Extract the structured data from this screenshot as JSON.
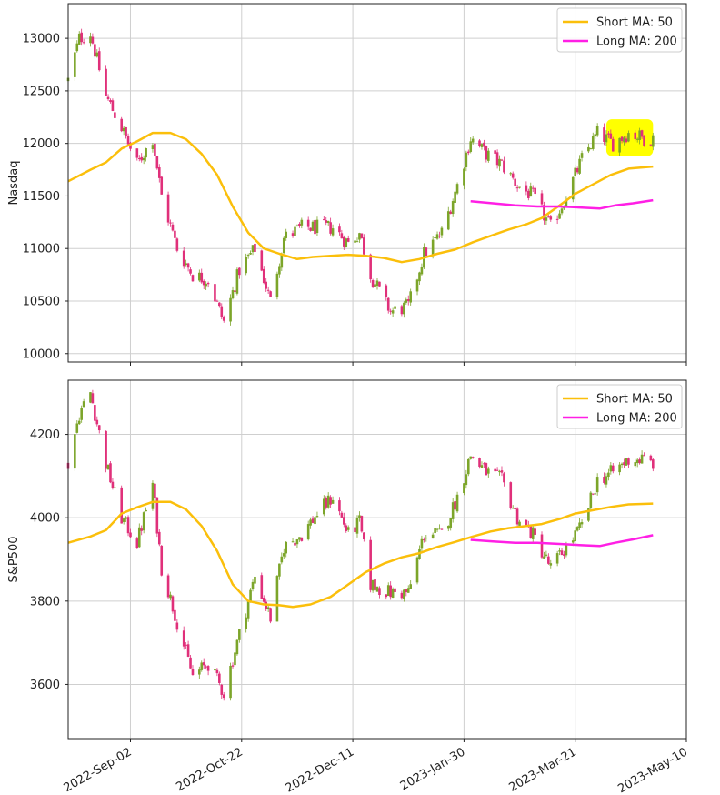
{
  "chart_data": {
    "type": "candlestick",
    "x_ticks": [
      "2022-Sep-02",
      "2022-Oct-22",
      "2022-Dec-11",
      "2023-Jan-30",
      "2023-Mar-21",
      "2023-May-10"
    ],
    "x_range": [
      "2022-Aug-05",
      "2023-May-10"
    ],
    "grid": true,
    "colors": {
      "up": "#7ca52a",
      "down": "#e0307a",
      "short_ma": "#fbbf0b",
      "long_ma": "#ff1fe5",
      "highlight": "#ffff00",
      "grid": "#cfcfcf"
    },
    "panels": [
      {
        "ylabel": "Nasdaq",
        "ylim": [
          9920,
          13330
        ],
        "yticks": [
          "10000",
          "10500",
          "11000",
          "11500",
          "12000",
          "12500",
          "13000"
        ],
        "legend": {
          "placement": "top-right",
          "entries": [
            "Short MA: 50",
            "Long MA: 200"
          ]
        },
        "highlight": {
          "x": [
            "2023-Apr-04",
            "2023-Apr-25"
          ],
          "y": [
            11880,
            12230
          ]
        },
        "series": [
          {
            "name": "Short MA: 50",
            "style": "line",
            "points": [
              [
                "2022-Aug-05",
                11640
              ],
              [
                "2022-Aug-15",
                11750
              ],
              [
                "2022-Aug-22",
                11820
              ],
              [
                "2022-Aug-29",
                11950
              ],
              [
                "2022-Sep-05",
                12020
              ],
              [
                "2022-Sep-12",
                12100
              ],
              [
                "2022-Sep-20",
                12100
              ],
              [
                "2022-Sep-27",
                12040
              ],
              [
                "2022-Oct-04",
                11900
              ],
              [
                "2022-Oct-11",
                11700
              ],
              [
                "2022-Oct-18",
                11400
              ],
              [
                "2022-Oct-25",
                11150
              ],
              [
                "2022-Nov-01",
                11000
              ],
              [
                "2022-Nov-08",
                10950
              ],
              [
                "2022-Nov-16",
                10900
              ],
              [
                "2022-Nov-23",
                10920
              ],
              [
                "2022-Dec-01",
                10930
              ],
              [
                "2022-Dec-09",
                10940
              ],
              [
                "2022-Dec-17",
                10930
              ],
              [
                "2022-Dec-25",
                10910
              ],
              [
                "2023-Jan-02",
                10870
              ],
              [
                "2023-Jan-10",
                10900
              ],
              [
                "2023-Jan-18",
                10950
              ],
              [
                "2023-Jan-26",
                10990
              ],
              [
                "2023-Feb-03",
                11060
              ],
              [
                "2023-Feb-11",
                11120
              ],
              [
                "2023-Feb-19",
                11180
              ],
              [
                "2023-Feb-27",
                11230
              ],
              [
                "2023-Mar-06",
                11290
              ],
              [
                "2023-Mar-14",
                11410
              ],
              [
                "2023-Mar-21",
                11520
              ],
              [
                "2023-Mar-29",
                11610
              ],
              [
                "2023-Apr-06",
                11700
              ],
              [
                "2023-Apr-14",
                11760
              ],
              [
                "2023-Apr-25",
                11780
              ]
            ]
          },
          {
            "name": "Long MA: 200",
            "style": "line",
            "points": [
              [
                "2023-Feb-02",
                11450
              ],
              [
                "2023-Feb-12",
                11430
              ],
              [
                "2023-Feb-22",
                11410
              ],
              [
                "2023-Mar-04",
                11400
              ],
              [
                "2023-Mar-14",
                11400
              ],
              [
                "2023-Mar-24",
                11390
              ],
              [
                "2023-Apr-01",
                11380
              ],
              [
                "2023-Apr-08",
                11410
              ],
              [
                "2023-Apr-16",
                11430
              ],
              [
                "2023-Apr-25",
                11460
              ]
            ]
          },
          {
            "name": "",
            "style": "candles",
            "anchors": [
              [
                "2022-Aug-05",
                12600
              ],
              [
                "2022-Aug-10",
                13000
              ],
              [
                "2022-Aug-15",
                13050
              ],
              [
                "2022-Aug-22",
                12450
              ],
              [
                "2022-Aug-29",
                12150
              ],
              [
                "2022-Sep-05",
                11800
              ],
              [
                "2022-Sep-12",
                12050
              ],
              [
                "2022-Sep-16",
                11500
              ],
              [
                "2022-Sep-23",
                11000
              ],
              [
                "2022-Sep-30",
                10750
              ],
              [
                "2022-Oct-07",
                10700
              ],
              [
                "2022-Oct-14",
                10300
              ],
              [
                "2022-Oct-21",
                10800
              ],
              [
                "2022-Oct-28",
                11000
              ],
              [
                "2022-Nov-04",
                10500
              ],
              [
                "2022-Nov-10",
                11100
              ],
              [
                "2022-Nov-18",
                11200
              ],
              [
                "2022-Nov-25",
                11200
              ],
              [
                "2022-Dec-02",
                11200
              ],
              [
                "2022-Dec-09",
                11050
              ],
              [
                "2022-Dec-14",
                11150
              ],
              [
                "2022-Dec-19",
                10750
              ],
              [
                "2022-Dec-28",
                10400
              ],
              [
                "2023-Jan-05",
                10450
              ],
              [
                "2023-Jan-12",
                10950
              ],
              [
                "2023-Jan-20",
                11150
              ],
              [
                "2023-Jan-27",
                11600
              ],
              [
                "2023-Feb-02",
                12050
              ],
              [
                "2023-Feb-09",
                11900
              ],
              [
                "2023-Feb-16",
                11800
              ],
              [
                "2023-Feb-23",
                11600
              ],
              [
                "2023-Mar-02",
                11500
              ],
              [
                "2023-Mar-10",
                11200
              ],
              [
                "2023-Mar-17",
                11500
              ],
              [
                "2023-Mar-24",
                11850
              ],
              [
                "2023-Mar-31",
                12100
              ],
              [
                "2023-Apr-07",
                12000
              ],
              [
                "2023-Apr-14",
                12100
              ],
              [
                "2023-Apr-21",
                12050
              ],
              [
                "2023-Apr-25",
                12050
              ]
            ]
          }
        ]
      },
      {
        "ylabel": "S&P500",
        "ylim": [
          3470,
          4330
        ],
        "yticks": [
          "3600",
          "3800",
          "4000",
          "4200"
        ],
        "legend": {
          "placement": "top-right",
          "entries": [
            "Short MA: 50",
            "Long MA: 200"
          ]
        },
        "series": [
          {
            "name": "Short MA: 50",
            "style": "line",
            "points": [
              [
                "2022-Aug-05",
                3940
              ],
              [
                "2022-Aug-15",
                3955
              ],
              [
                "2022-Aug-22",
                3970
              ],
              [
                "2022-Aug-29",
                4010
              ],
              [
                "2022-Sep-05",
                4025
              ],
              [
                "2022-Sep-12",
                4038
              ],
              [
                "2022-Sep-20",
                4038
              ],
              [
                "2022-Sep-27",
                4020
              ],
              [
                "2022-Oct-04",
                3980
              ],
              [
                "2022-Oct-11",
                3920
              ],
              [
                "2022-Oct-18",
                3840
              ],
              [
                "2022-Oct-25",
                3800
              ],
              [
                "2022-Nov-01",
                3792
              ],
              [
                "2022-Nov-08",
                3790
              ],
              [
                "2022-Nov-14",
                3786
              ],
              [
                "2022-Nov-22",
                3792
              ],
              [
                "2022-Dec-01",
                3810
              ],
              [
                "2022-Dec-09",
                3840
              ],
              [
                "2022-Dec-17",
                3870
              ],
              [
                "2022-Dec-25",
                3890
              ],
              [
                "2023-Jan-02",
                3905
              ],
              [
                "2023-Jan-10",
                3915
              ],
              [
                "2023-Jan-18",
                3930
              ],
              [
                "2023-Jan-26",
                3942
              ],
              [
                "2023-Feb-03",
                3955
              ],
              [
                "2023-Feb-11",
                3967
              ],
              [
                "2023-Feb-19",
                3975
              ],
              [
                "2023-Feb-27",
                3980
              ],
              [
                "2023-Mar-06",
                3985
              ],
              [
                "2023-Mar-14",
                3997
              ],
              [
                "2023-Mar-21",
                4010
              ],
              [
                "2023-Mar-29",
                4018
              ],
              [
                "2023-Apr-06",
                4026
              ],
              [
                "2023-Apr-14",
                4032
              ],
              [
                "2023-Apr-25",
                4034
              ]
            ]
          },
          {
            "name": "Long MA: 200",
            "style": "line",
            "points": [
              [
                "2023-Feb-02",
                3947
              ],
              [
                "2023-Feb-12",
                3943
              ],
              [
                "2023-Feb-22",
                3940
              ],
              [
                "2023-Mar-04",
                3940
              ],
              [
                "2023-Mar-14",
                3937
              ],
              [
                "2023-Mar-24",
                3934
              ],
              [
                "2023-Apr-01",
                3932
              ],
              [
                "2023-Apr-08",
                3940
              ],
              [
                "2023-Apr-16",
                3948
              ],
              [
                "2023-Apr-25",
                3958
              ]
            ]
          },
          {
            "name": "",
            "style": "candles",
            "anchors": [
              [
                "2022-Aug-05",
                4130
              ],
              [
                "2022-Aug-10",
                4250
              ],
              [
                "2022-Aug-15",
                4300
              ],
              [
                "2022-Aug-22",
                4130
              ],
              [
                "2022-Aug-29",
                4000
              ],
              [
                "2022-Sep-05",
                3940
              ],
              [
                "2022-Sep-12",
                4080
              ],
              [
                "2022-Sep-16",
                3880
              ],
              [
                "2022-Sep-23",
                3750
              ],
              [
                "2022-Sep-30",
                3620
              ],
              [
                "2022-Oct-07",
                3650
              ],
              [
                "2022-Oct-14",
                3580
              ],
              [
                "2022-Oct-21",
                3720
              ],
              [
                "2022-Oct-28",
                3860
              ],
              [
                "2022-Nov-04",
                3760
              ],
              [
                "2022-Nov-10",
                3930
              ],
              [
                "2022-Nov-18",
                3960
              ],
              [
                "2022-Nov-25",
                4010
              ],
              [
                "2022-Dec-02",
                4050
              ],
              [
                "2022-Dec-09",
                3960
              ],
              [
                "2022-Dec-14",
                3990
              ],
              [
                "2022-Dec-19",
                3840
              ],
              [
                "2022-Dec-28",
                3820
              ],
              [
                "2023-Jan-05",
                3820
              ],
              [
                "2023-Jan-12",
                3960
              ],
              [
                "2023-Jan-20",
                3960
              ],
              [
                "2023-Jan-27",
                4050
              ],
              [
                "2023-Feb-02",
                4150
              ],
              [
                "2023-Feb-09",
                4110
              ],
              [
                "2023-Feb-16",
                4090
              ],
              [
                "2023-Feb-23",
                4000
              ],
              [
                "2023-Mar-02",
                3960
              ],
              [
                "2023-Mar-10",
                3880
              ],
              [
                "2023-Mar-17",
                3930
              ],
              [
                "2023-Mar-24",
                3980
              ],
              [
                "2023-Mar-31",
                4090
              ],
              [
                "2023-Apr-07",
                4110
              ],
              [
                "2023-Apr-14",
                4140
              ],
              [
                "2023-Apr-21",
                4140
              ],
              [
                "2023-Apr-25",
                4130
              ]
            ]
          }
        ]
      }
    ]
  }
}
